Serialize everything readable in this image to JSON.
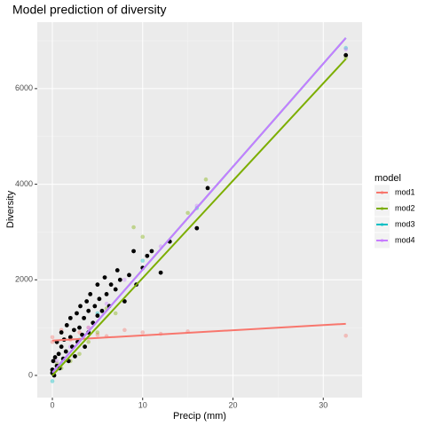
{
  "chart_data": {
    "type": "scatter",
    "title": "Model prediction of diversity",
    "x_label": "Precip (mm)",
    "y_label": "Diversity",
    "legend_title": "model",
    "grid": true,
    "xlim": [
      -1.67,
      34.3
    ],
    "ylim": [
      -464,
      7390
    ],
    "xticks": [
      0,
      10,
      20,
      30
    ],
    "yticks": [
      0,
      2000,
      4000,
      6000
    ],
    "xminor": [
      5,
      15,
      25
    ],
    "yminor": [
      1000,
      3000,
      5000,
      7000
    ],
    "observed": {
      "color": "#000000",
      "x": [
        0,
        0,
        0.1,
        0.2,
        0.3,
        0.5,
        0.5,
        0.7,
        0.8,
        1,
        1,
        1.2,
        1.3,
        1.5,
        1.6,
        1.8,
        2,
        2,
        2.2,
        2.4,
        2.5,
        2.7,
        2.8,
        3,
        3.1,
        3.3,
        3.5,
        3.6,
        3.8,
        4,
        4,
        4.2,
        4.5,
        4.7,
        5,
        5,
        5.2,
        5.5,
        5.8,
        6,
        6.3,
        6.5,
        7,
        7.2,
        7.5,
        8,
        8.5,
        9,
        9.3,
        10,
        10.5,
        11,
        12,
        13,
        16,
        17.2,
        32.5
      ],
      "values": [
        50,
        120,
        300,
        0,
        380,
        200,
        700,
        450,
        150,
        600,
        900,
        350,
        750,
        500,
        1050,
        300,
        800,
        1200,
        600,
        950,
        400,
        1300,
        700,
        1000,
        1450,
        850,
        1200,
        600,
        1550,
        900,
        1350,
        1700,
        1100,
        1450,
        1250,
        1900,
        1600,
        1350,
        2050,
        1700,
        1450,
        1900,
        1800,
        2200,
        2000,
        1550,
        2100,
        2600,
        1900,
        2250,
        2500,
        2600,
        2150,
        2800,
        3080,
        3920,
        6700
      ]
    },
    "series": [
      {
        "name": "mod1",
        "color": "#F8766D",
        "x": [
          0,
          32.5
        ],
        "values": [
          730,
          1080
        ],
        "points_x": [
          0,
          0,
          1,
          2,
          3,
          4,
          5,
          6,
          8,
          10,
          12,
          15,
          32.5
        ],
        "points_y": [
          700,
          800,
          950,
          750,
          900,
          1000,
          850,
          820,
          950,
          900,
          870,
          920,
          830
        ]
      },
      {
        "name": "mod2",
        "color": "#7CAE00",
        "x": [
          0,
          32.5
        ],
        "values": [
          0,
          6620
        ],
        "points_x": [
          0,
          0.5,
          1,
          2,
          3,
          4,
          5,
          6,
          7,
          9,
          10,
          15,
          17,
          32.5
        ],
        "points_y": [
          60,
          250,
          150,
          300,
          450,
          700,
          900,
          1400,
          1300,
          3100,
          2900,
          3400,
          4100,
          6650
        ]
      },
      {
        "name": "mod3",
        "color": "#00BFC4",
        "x": [
          0,
          32.5
        ],
        "values": [
          60,
          7060
        ],
        "points_x": [
          0,
          0,
          1,
          3,
          5,
          10,
          16,
          32.5
        ],
        "points_y": [
          -120,
          50,
          250,
          750,
          1300,
          2400,
          3500,
          6850
        ]
      },
      {
        "name": "mod4",
        "color": "#C77CFF",
        "x": [
          0,
          32.5
        ],
        "values": [
          60,
          7060
        ],
        "points_x": [
          0,
          0.5,
          2,
          4,
          6,
          8,
          12,
          16,
          32.5
        ],
        "points_y": [
          80,
          300,
          600,
          1000,
          1500,
          2000,
          2700,
          3550,
          6820
        ]
      }
    ]
  }
}
